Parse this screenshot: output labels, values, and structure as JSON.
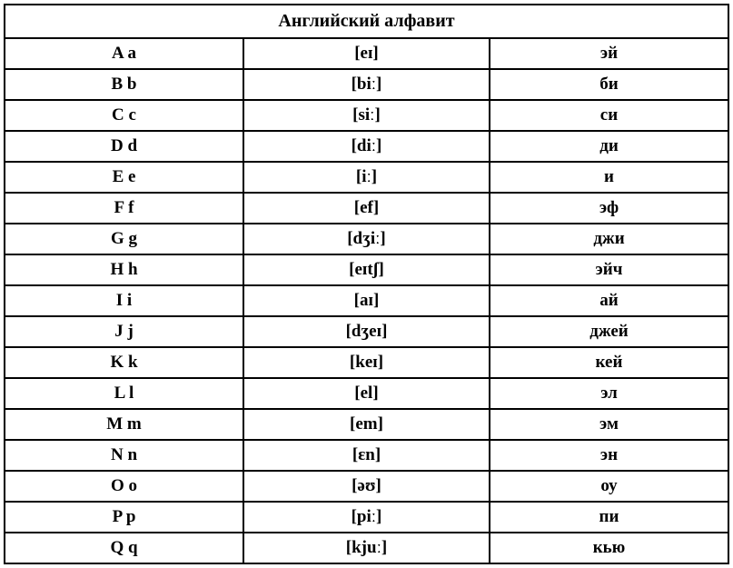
{
  "table": {
    "title": "Английский алфавит",
    "title_fontsize": 20,
    "cell_fontsize": 19,
    "font_family": "Times New Roman",
    "font_weight": "bold",
    "border_color": "#000000",
    "border_width": 2,
    "background_color": "#ffffff",
    "text_color": "#000000",
    "columns": [
      {
        "name": "letter",
        "width_pct": 33,
        "align": "center"
      },
      {
        "name": "ipa",
        "width_pct": 34,
        "align": "center"
      },
      {
        "name": "russian",
        "width_pct": 33,
        "align": "center"
      }
    ],
    "rows": [
      {
        "letter": "A a",
        "ipa": "[eɪ]",
        "russian": "эй"
      },
      {
        "letter": "B b",
        "ipa": "[biː]",
        "russian": "би"
      },
      {
        "letter": "C c",
        "ipa": "[siː]",
        "russian": "си"
      },
      {
        "letter": "D d",
        "ipa": "[diː]",
        "russian": "ди"
      },
      {
        "letter": "E e",
        "ipa": "[iː]",
        "russian": "и"
      },
      {
        "letter": "F f",
        "ipa": "[ef]",
        "russian": "эф"
      },
      {
        "letter": "G g",
        "ipa": "[dʒiː]",
        "russian": "джи"
      },
      {
        "letter": "H h",
        "ipa": "[eɪtʃ]",
        "russian": "эйч"
      },
      {
        "letter": "I i",
        "ipa": "[aɪ]",
        "russian": "ай"
      },
      {
        "letter": "J j",
        "ipa": "[dʒeɪ]",
        "russian": "джей"
      },
      {
        "letter": "K k",
        "ipa": "[keɪ]",
        "russian": "кей"
      },
      {
        "letter": "L l",
        "ipa": "[el]",
        "russian": "эл"
      },
      {
        "letter": "M m",
        "ipa": "[em]",
        "russian": "эм"
      },
      {
        "letter": "N n",
        "ipa": "[ɛn]",
        "russian": "эн"
      },
      {
        "letter": "O o",
        "ipa": "[əʊ]",
        "russian": "оу"
      },
      {
        "letter": "P p",
        "ipa": "[piː]",
        "russian": "пи"
      },
      {
        "letter": "Q q",
        "ipa": "[kjuː]",
        "russian": "кью"
      }
    ]
  }
}
